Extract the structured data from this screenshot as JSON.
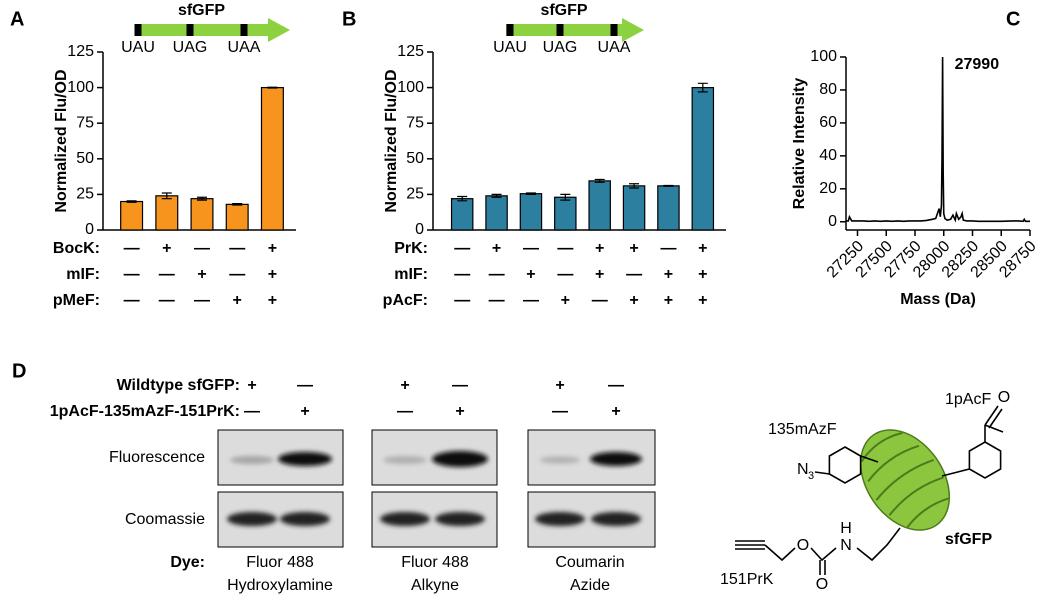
{
  "chart_data": [
    {
      "type": "bar",
      "panel_label": "A",
      "gene": {
        "name": "sfGFP",
        "codons": [
          "UAU",
          "UAG",
          "UAA"
        ]
      },
      "ylabel": "Normalized Flu/OD",
      "values": [
        20,
        24,
        22,
        18,
        100
      ],
      "errors": [
        0.5,
        2,
        1,
        0.5,
        0.3
      ],
      "color": "#f7941d",
      "ylim": [
        0,
        125
      ],
      "yticks": [
        0,
        25,
        50,
        75,
        100,
        125
      ],
      "conditions": [
        {
          "label": "BocK:",
          "signs": [
            "—",
            "+",
            "—",
            "—",
            "+"
          ]
        },
        {
          "label": "mIF:",
          "signs": [
            "—",
            "—",
            "+",
            "—",
            "+"
          ]
        },
        {
          "label": "pMeF:",
          "signs": [
            "—",
            "—",
            "—",
            "+",
            "+"
          ]
        }
      ]
    },
    {
      "type": "bar",
      "panel_label": "B",
      "gene": {
        "name": "sfGFP",
        "codons": [
          "UAU",
          "UAG",
          "UAA"
        ]
      },
      "ylabel": "Normalized Flu/OD",
      "values": [
        22,
        24,
        25.5,
        23,
        34.5,
        31,
        31,
        100
      ],
      "errors": [
        1.5,
        1,
        0.5,
        2,
        1,
        1.5,
        0.3,
        3
      ],
      "color": "#2d7fa0",
      "ylim": [
        0,
        125
      ],
      "yticks": [
        0,
        25,
        50,
        75,
        100,
        125
      ],
      "conditions": [
        {
          "label": "PrK:",
          "signs": [
            "—",
            "+",
            "—",
            "—",
            "+",
            "+",
            "—",
            "+"
          ]
        },
        {
          "label": "mIF:",
          "signs": [
            "—",
            "—",
            "+",
            "—",
            "+",
            "—",
            "+",
            "+"
          ]
        },
        {
          "label": "pAcF:",
          "signs": [
            "—",
            "—",
            "—",
            "+",
            "—",
            "+",
            "+",
            "+"
          ]
        }
      ]
    },
    {
      "type": "line",
      "panel_label": "C",
      "annotation": "27990",
      "xlabel": "Mass (Da)",
      "ylabel": "Relative Intensity",
      "x": [
        27150,
        27170,
        27180,
        27200,
        27250,
        27300,
        27350,
        27400,
        27450,
        27500,
        27550,
        27600,
        27650,
        27700,
        27750,
        27800,
        27850,
        27900,
        27930,
        27950,
        27960,
        27970,
        27980,
        27985,
        27990,
        27995,
        28000,
        28010,
        28030,
        28060,
        28080,
        28100,
        28110,
        28130,
        28150,
        28160,
        28170,
        28200,
        28250,
        28300,
        28400,
        28500,
        28600,
        28650,
        28690,
        28700,
        28710,
        28750
      ],
      "values": [
        0.5,
        0.5,
        3,
        0.5,
        0.5,
        0.5,
        0.3,
        0.5,
        0.3,
        0.5,
        0.3,
        0.5,
        0.3,
        0.5,
        0.5,
        0.5,
        0.8,
        1.5,
        2,
        6,
        8,
        3,
        10,
        40,
        100,
        30,
        5,
        2,
        1,
        1.5,
        4,
        1,
        5,
        1.5,
        3,
        5,
        1,
        0.5,
        0.5,
        0.3,
        0.3,
        0.3,
        0.5,
        0.5,
        0.3,
        1.5,
        0.3,
        0.3
      ],
      "color": "#000000",
      "xlim": [
        27150,
        28750
      ],
      "xticks": [
        27250,
        27500,
        27750,
        28000,
        28250,
        28500,
        28750
      ],
      "ylim": [
        -5,
        100
      ],
      "yticks": [
        0,
        20,
        40,
        60,
        80,
        100
      ]
    }
  ],
  "panel_d": {
    "panel_label": "D",
    "conditions": [
      {
        "label": "Wildtype sfGFP:",
        "signs": [
          "+",
          "—",
          "+",
          "—",
          "+",
          "—"
        ]
      },
      {
        "label": "1pAcF-135mAzF-151PrK:",
        "signs": [
          "—",
          "+",
          "—",
          "+",
          "—",
          "+"
        ]
      }
    ],
    "rows": [
      "Fluorescence",
      "Coomassie"
    ],
    "dye_label": "Dye:",
    "dyes": [
      [
        "Fluor 488",
        "Hydroxylamine"
      ],
      [
        "Fluor 488",
        "Alkyne"
      ],
      [
        "Coumarin",
        "Azide"
      ]
    ],
    "molecule": {
      "site_135": "135mAzF",
      "site_1": "1pAcF",
      "site_151": "151PrK",
      "protein": "sfGFP",
      "atoms": [
        "N",
        "3",
        "H",
        "N",
        "O",
        "O",
        "O"
      ]
    }
  }
}
